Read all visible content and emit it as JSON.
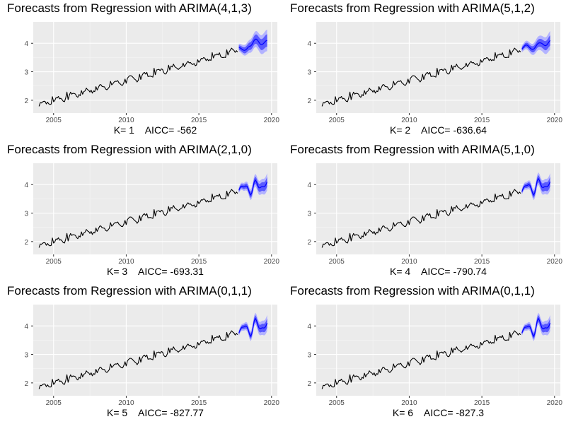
{
  "chart_data": [
    {
      "type": "line",
      "title": "Forecasts from Regression with ARIMA(4,1,3)",
      "xlabel": "K= 1    AICC= -562",
      "x_ticks": [
        2005,
        2010,
        2015,
        2020
      ],
      "y_ticks": [
        2,
        3,
        4
      ],
      "xlim": [
        2003.6,
        2020.4
      ],
      "ylim": [
        1.55,
        4.75
      ],
      "series": [
        {
          "values": "see x/y"
        }
      ],
      "forecast_start": 2017.75,
      "forecast_end": 2019.7,
      "forecast_shape": "smooth",
      "forecast_center": [
        3.85,
        3.75,
        3.9,
        4.15,
        3.95,
        4.1
      ],
      "forecast_band80": 0.22,
      "forecast_band95": 0.38
    },
    {
      "type": "line",
      "title": "Forecasts from Regression with ARIMA(5,1,2)",
      "xlabel": "K= 2    AICC= -636.64",
      "x_ticks": [
        2005,
        2010,
        2015,
        2020
      ],
      "y_ticks": [
        2,
        3,
        4
      ],
      "xlim": [
        2003.6,
        2020.4
      ],
      "ylim": [
        1.55,
        4.75
      ],
      "forecast_start": 2017.75,
      "forecast_end": 2019.7,
      "forecast_shape": "wavy",
      "forecast_center": [
        3.8,
        3.95,
        3.75,
        4.05,
        3.9,
        4.1
      ],
      "forecast_band80": 0.18,
      "forecast_band95": 0.33
    },
    {
      "type": "line",
      "title": "Forecasts from Regression with ARIMA(2,1,0)",
      "xlabel": "K= 3    AICC= -693.31",
      "x_ticks": [
        2005,
        2010,
        2015,
        2020
      ],
      "y_ticks": [
        2,
        3,
        4
      ],
      "xlim": [
        2003.6,
        2020.4
      ],
      "ylim": [
        1.55,
        4.75
      ],
      "forecast_start": 2017.75,
      "forecast_end": 2019.7,
      "forecast_shape": "seasonal",
      "forecast_center": [
        3.8,
        4.0,
        3.7,
        4.1,
        3.85,
        4.1
      ],
      "forecast_band80": 0.17,
      "forecast_band95": 0.3
    },
    {
      "type": "line",
      "title": "Forecasts from Regression with ARIMA(5,1,0)",
      "xlabel": "K= 4    AICC= -790.74",
      "x_ticks": [
        2005,
        2010,
        2015,
        2020
      ],
      "y_ticks": [
        2,
        3,
        4
      ],
      "xlim": [
        2003.6,
        2020.4
      ],
      "ylim": [
        1.55,
        4.75
      ],
      "forecast_start": 2017.75,
      "forecast_end": 2019.7,
      "forecast_shape": "seasonal",
      "forecast_center": [
        3.75,
        4.05,
        3.7,
        4.15,
        3.85,
        4.1
      ],
      "forecast_band80": 0.17,
      "forecast_band95": 0.3
    },
    {
      "type": "line",
      "title": "Forecasts from Regression with ARIMA(0,1,1)",
      "xlabel": "K= 5    AICC= -827.77",
      "x_ticks": [
        2005,
        2010,
        2015,
        2020
      ],
      "y_ticks": [
        2,
        3,
        4
      ],
      "xlim": [
        2003.6,
        2020.4
      ],
      "ylim": [
        1.55,
        4.75
      ],
      "forecast_start": 2017.75,
      "forecast_end": 2019.7,
      "forecast_shape": "seasonal",
      "forecast_center": [
        3.75,
        4.05,
        3.7,
        4.2,
        3.85,
        4.1
      ],
      "forecast_band80": 0.16,
      "forecast_band95": 0.28
    },
    {
      "type": "line",
      "title": "Forecasts from Regression with ARIMA(0,1,1)",
      "xlabel": "K= 6    AICC= -827.3",
      "x_ticks": [
        2005,
        2010,
        2015,
        2020
      ],
      "y_ticks": [
        2,
        3,
        4
      ],
      "xlim": [
        2003.6,
        2020.4
      ],
      "ylim": [
        1.55,
        4.75
      ],
      "forecast_start": 2017.75,
      "forecast_end": 2019.7,
      "forecast_shape": "seasonal",
      "forecast_center": [
        3.75,
        4.05,
        3.7,
        4.2,
        3.85,
        4.1
      ],
      "forecast_band80": 0.16,
      "forecast_band95": 0.28
    }
  ],
  "history": {
    "start": 2004.0,
    "end": 2017.7,
    "start_value": 1.85,
    "end_value": 3.75,
    "dip_points": [
      [
        2017.3,
        3.55
      ]
    ]
  },
  "colors": {
    "panel_bg": "#ebebeb",
    "grid_major": "#ffffff",
    "line": "#000000",
    "forecast_line": "#0000ff",
    "band80": "#5a5aff",
    "band95": "#b3b3ff",
    "tick_text": "#4d4d4d"
  }
}
